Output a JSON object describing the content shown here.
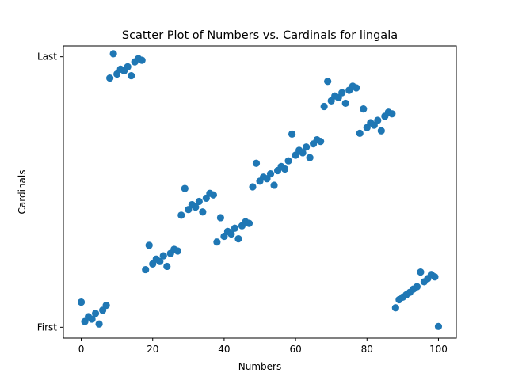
{
  "chart_data": {
    "type": "scatter",
    "title": "Scatter Plot of Numbers vs. Cardinals for lingala",
    "xlabel": "Numbers",
    "ylabel": "Cardinals",
    "xlim": [
      -5,
      105
    ],
    "ylim": [
      -4,
      104
    ],
    "x_ticks": [
      0,
      20,
      40,
      60,
      80,
      100
    ],
    "x_tick_labels": [
      "0",
      "20",
      "40",
      "60",
      "80",
      "100"
    ],
    "y_ticks": [
      0,
      100
    ],
    "y_tick_labels": [
      "First",
      "Last"
    ],
    "grid": false,
    "marker_color": "#1f77b4",
    "x": [
      0,
      1,
      2,
      3,
      4,
      5,
      6,
      7,
      8,
      9,
      10,
      11,
      12,
      13,
      14,
      15,
      16,
      17,
      18,
      19,
      20,
      21,
      22,
      23,
      24,
      25,
      26,
      27,
      28,
      29,
      30,
      31,
      32,
      33,
      34,
      35,
      36,
      37,
      38,
      39,
      40,
      41,
      42,
      43,
      44,
      45,
      46,
      47,
      48,
      49,
      50,
      51,
      52,
      53,
      54,
      55,
      56,
      57,
      58,
      59,
      60,
      61,
      62,
      63,
      64,
      65,
      66,
      67,
      68,
      69,
      70,
      71,
      72,
      73,
      74,
      75,
      76,
      77,
      78,
      79,
      80,
      81,
      82,
      83,
      84,
      85,
      86,
      87,
      88,
      89,
      90,
      91,
      92,
      93,
      94,
      95,
      96,
      97,
      98,
      99,
      100
    ],
    "y": [
      9.3,
      2.1,
      3.9,
      3.0,
      5.1,
      1.2,
      6.3,
      8.1,
      92.1,
      101.1,
      93.6,
      95.4,
      94.8,
      96.3,
      93.0,
      98.1,
      99.3,
      98.7,
      21.3,
      30.3,
      23.4,
      25.2,
      24.3,
      26.4,
      22.5,
      27.3,
      28.8,
      28.2,
      41.4,
      51.3,
      43.5,
      45.3,
      44.4,
      46.5,
      42.6,
      47.7,
      49.5,
      48.9,
      31.5,
      40.5,
      33.6,
      35.4,
      34.5,
      36.6,
      32.7,
      37.5,
      39.0,
      38.4,
      51.9,
      60.6,
      54.0,
      55.5,
      54.9,
      56.7,
      52.5,
      57.9,
      59.4,
      58.5,
      61.5,
      71.4,
      63.6,
      65.4,
      64.5,
      66.6,
      62.7,
      67.8,
      69.3,
      68.7,
      81.6,
      90.9,
      83.7,
      85.5,
      84.9,
      86.7,
      82.8,
      87.6,
      89.1,
      88.5,
      71.7,
      80.7,
      73.8,
      75.6,
      74.7,
      76.5,
      72.6,
      78.0,
      79.5,
      78.9,
      7.2,
      10.2,
      11.1,
      12.0,
      12.9,
      14.1,
      15.0,
      20.4,
      16.8,
      18.0,
      19.5,
      18.6,
      0.3
    ]
  }
}
